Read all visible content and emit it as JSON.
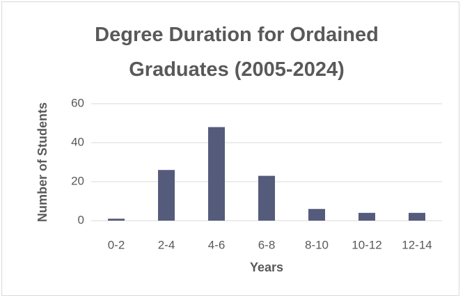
{
  "chart_data": {
    "type": "bar",
    "title": "Degree Duration for Ordained Graduates (2005-2024)",
    "x_label": "Years",
    "y_label": "Number of Students",
    "categories": [
      "0-2",
      "2-4",
      "4-6",
      "6-8",
      "8-10",
      "10-12",
      "12-14"
    ],
    "values": [
      1,
      26,
      48,
      23,
      6,
      4,
      4
    ],
    "color": "#555b7b",
    "ylim": [
      0,
      60
    ],
    "yticks": [
      0,
      20,
      40,
      60
    ],
    "grid": true
  }
}
